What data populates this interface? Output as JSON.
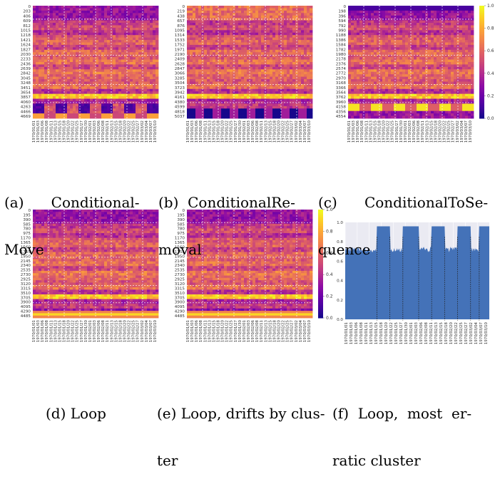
{
  "colors": {
    "plasma": [
      "#0d0887",
      "#41049d",
      "#6a00a8",
      "#8f0da4",
      "#b12a90",
      "#cc4778",
      "#e16462",
      "#f2844b",
      "#fca636",
      "#fcce25",
      "#f0f921"
    ],
    "area_fill": "#4472b8",
    "area_bg": "#eaeaf2"
  },
  "captions": {
    "a": {
      "line1": "(a)      Conditional-",
      "line2": "Move"
    },
    "b": {
      "line1": "(b)  ConditionalRe-",
      "line2": "moval"
    },
    "c": {
      "line1": "(c)      ConditionalToSe-",
      "line2": "quence"
    },
    "d": {
      "line1": "(d) Loop"
    },
    "e": {
      "line1": "(e) Loop, drifts by clus-",
      "line2": "ter"
    },
    "f": {
      "line1": "(f)  Loop,  most  er-",
      "line2": "ratic cluster"
    }
  },
  "date_ticks": [
    "1970/01/01",
    "1970/01/03",
    "1970/01/06",
    "1970/01/08",
    "1970/01/11",
    "1970/01/13",
    "1970/01/15",
    "1970/01/18",
    "1970/01/20",
    "1970/01/22",
    "1970/01/25",
    "1970/01/27",
    "1970/01/30",
    "1970/02/01",
    "1970/02/03",
    "1970/02/06",
    "1970/02/08",
    "1970/02/11",
    "1970/02/13",
    "1970/02/15",
    "1970/02/18",
    "1970/02/20",
    "1970/02/22",
    "1970/02/25",
    "1970/02/27",
    "1970/03/02",
    "1970/03/04",
    "1970/03/07",
    "1970/03/10"
  ],
  "chart_data": [
    {
      "type": "heatmap",
      "id": "a",
      "y_ticks": [
        "0",
        "203",
        "406",
        "609",
        "812",
        "1015",
        "1218",
        "1421",
        "1624",
        "1827",
        "2030",
        "2233",
        "2436",
        "2639",
        "2842",
        "3045",
        "3248",
        "3451",
        "3654",
        "3857",
        "4060",
        "4263",
        "4466",
        "4669"
      ],
      "colorbar": false
    },
    {
      "type": "heatmap",
      "id": "b",
      "y_ticks": [
        "0",
        "219",
        "438",
        "657",
        "876",
        "1095",
        "1314",
        "1533",
        "1752",
        "1971",
        "2190",
        "2409",
        "2628",
        "2847",
        "3066",
        "3285",
        "3504",
        "3723",
        "3942",
        "4161",
        "4380",
        "4599",
        "4818",
        "5037"
      ],
      "colorbar": false
    },
    {
      "type": "heatmap",
      "id": "c",
      "y_ticks": [
        "0",
        "198",
        "396",
        "594",
        "792",
        "990",
        "1188",
        "1386",
        "1584",
        "1782",
        "1980",
        "2178",
        "2376",
        "2574",
        "2772",
        "2970",
        "3168",
        "3366",
        "3564",
        "3762",
        "3960",
        "4158",
        "4356",
        "4554"
      ],
      "colorbar": true,
      "colorbar_ticks": [
        "0.0",
        "0.2",
        "0.4",
        "0.6",
        "0.8",
        "1.0"
      ]
    },
    {
      "type": "heatmap",
      "id": "d",
      "y_ticks": [
        "0",
        "195",
        "390",
        "585",
        "780",
        "975",
        "1170",
        "1365",
        "1560",
        "1755",
        "1950",
        "2145",
        "2340",
        "2535",
        "2730",
        "2925",
        "3120",
        "3315",
        "3510",
        "3705",
        "3900",
        "4095",
        "4290",
        "4485"
      ],
      "colorbar": false
    },
    {
      "type": "heatmap",
      "id": "e",
      "y_ticks": [
        "0",
        "195",
        "390",
        "585",
        "780",
        "975",
        "1170",
        "1365",
        "1560",
        "1755",
        "1950",
        "2145",
        "2340",
        "2535",
        "2730",
        "2925",
        "3120",
        "3315",
        "3510",
        "3705",
        "3900",
        "4095",
        "4290",
        "4485"
      ],
      "colorbar": true,
      "colorbar_ticks": [
        "0.0",
        "0.2",
        "0.4",
        "0.6",
        "0.8",
        "1.0"
      ]
    },
    {
      "type": "area",
      "id": "f",
      "y_ticks": [
        "0.0",
        "0.2",
        "0.4",
        "0.6",
        "0.8",
        "1.0"
      ],
      "ylim": [
        0,
        1
      ],
      "x_ticks": [
        "1970/01/01",
        "1970/01/03",
        "1970/01/06",
        "1970/01/08",
        "1970/01/11",
        "1970/01/13",
        "1970/01/15",
        "1970/01/18",
        "1970/01/20",
        "1970/01/22",
        "1970/01/25",
        "1970/01/27",
        "1970/01/30",
        "1970/02/01",
        "1970/02/03",
        "1970/02/06",
        "1970/02/08",
        "1970/02/11",
        "1970/02/13",
        "1970/02/15",
        "1970/02/18",
        "1970/02/20",
        "1970/02/22",
        "1970/02/25",
        "1970/02/27",
        "1970/03/02",
        "1970/03/04",
        "1970/03/07",
        "1970/03/10"
      ],
      "low_value": 0.72,
      "high_value": 0.96,
      "high_segments": [
        [
          0.22,
          0.31
        ],
        [
          0.4,
          0.51
        ],
        [
          0.6,
          0.69
        ],
        [
          0.78,
          0.87
        ],
        [
          0.93,
          1.0
        ]
      ]
    }
  ]
}
